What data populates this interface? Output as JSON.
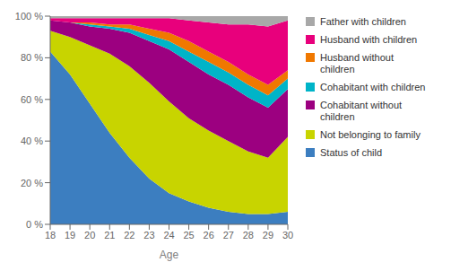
{
  "chart_data": {
    "type": "area",
    "stacked": true,
    "xlabel": "Age",
    "x": [
      18,
      19,
      20,
      21,
      22,
      23,
      24,
      25,
      26,
      27,
      28,
      29,
      30
    ],
    "series": [
      {
        "name": "Status of child",
        "color": "#3C7EC0",
        "values": [
          83,
          72,
          58,
          44,
          32,
          22,
          15,
          11,
          8,
          6,
          5,
          5,
          6
        ]
      },
      {
        "name": "Not belonging to family",
        "color": "#C8D400",
        "values": [
          10,
          18,
          28,
          38,
          44,
          46,
          44,
          40,
          37,
          34,
          30,
          27,
          36
        ]
      },
      {
        "name": "Cohabitant without\nchildren",
        "color": "#9C0080",
        "values": [
          5,
          7,
          9,
          12,
          16,
          20,
          25,
          27,
          27,
          27,
          26,
          24,
          23
        ]
      },
      {
        "name": "Cohabitant with children",
        "color": "#00B4C8",
        "values": [
          0,
          0,
          1,
          1,
          2,
          3,
          4,
          5,
          6,
          6,
          6,
          6,
          5
        ]
      },
      {
        "name": "Husband without\nchildren",
        "color": "#F07800",
        "values": [
          0,
          0,
          1,
          1,
          2,
          3,
          4,
          5,
          5,
          5,
          5,
          5,
          4
        ]
      },
      {
        "name": "Husband with children",
        "color": "#E8007C",
        "values": [
          1,
          2,
          2,
          3,
          3,
          5,
          7,
          10,
          14,
          18,
          24,
          28,
          24
        ]
      },
      {
        "name": "Father with children",
        "color": "#A8A8A8",
        "values": [
          1,
          1,
          1,
          1,
          1,
          1,
          1,
          2,
          3,
          4,
          4,
          5,
          2
        ]
      }
    ],
    "xlim": [
      18,
      30
    ],
    "xticks": [
      18,
      19,
      20,
      21,
      22,
      23,
      24,
      25,
      26,
      27,
      28,
      29,
      30
    ],
    "ylim": [
      0,
      100
    ],
    "yticks": [
      {
        "value": 0,
        "label": "0 %"
      },
      {
        "value": 20,
        "label": "20 %"
      },
      {
        "value": 40,
        "label": "40 %"
      },
      {
        "value": 60,
        "label": "60 %"
      },
      {
        "value": 80,
        "label": "80 %"
      },
      {
        "value": 100,
        "label": "100 %"
      }
    ],
    "grid": false,
    "legend": "right"
  }
}
